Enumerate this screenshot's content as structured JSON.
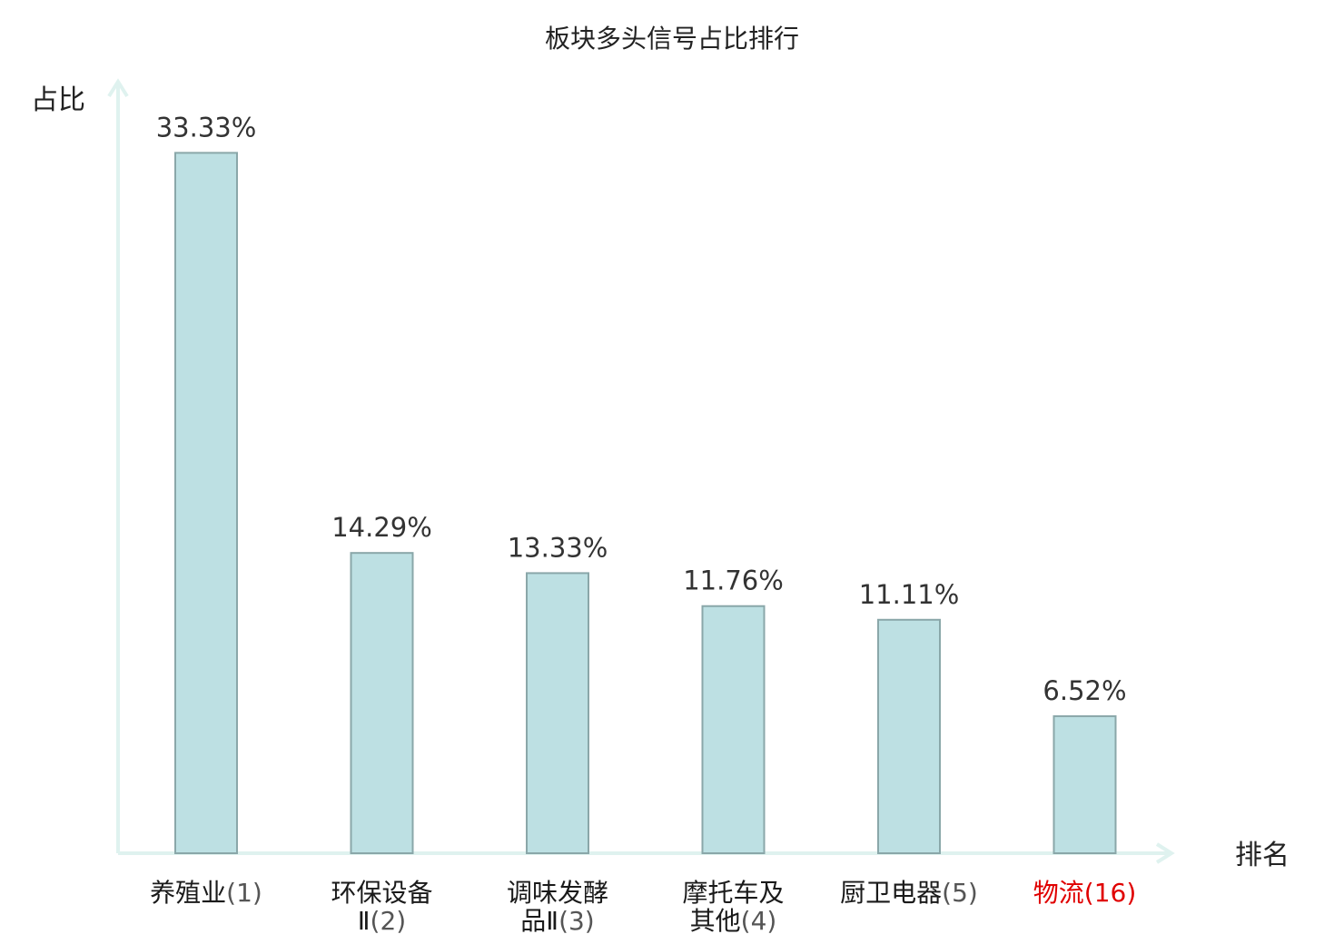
{
  "chart_data": {
    "type": "bar",
    "title": "板块多头信号占比排行",
    "xlabel": "排名",
    "ylabel": "占比",
    "value_unit": "%",
    "ylim": [
      0,
      36.5
    ],
    "grid": false,
    "categories": [
      {
        "name_lines": [
          "养殖业"
        ],
        "rank": "(1)",
        "highlight": false
      },
      {
        "name_lines": [
          "环保设备",
          "Ⅱ"
        ],
        "rank": "(2)",
        "highlight": false
      },
      {
        "name_lines": [
          "调味发酵",
          "品Ⅱ"
        ],
        "rank": "(3)",
        "highlight": false
      },
      {
        "name_lines": [
          "摩托车及",
          "其他"
        ],
        "rank": "(4)",
        "highlight": false
      },
      {
        "name_lines": [
          "厨卫电器"
        ],
        "rank": "(5)",
        "highlight": false
      },
      {
        "name_lines": [
          "物流"
        ],
        "rank": "(16)",
        "highlight": true
      }
    ],
    "values": [
      33.33,
      14.29,
      13.33,
      11.76,
      11.11,
      6.52
    ],
    "value_labels": [
      "33.33%",
      "14.29%",
      "13.33%",
      "11.76%",
      "11.11%",
      "6.52%"
    ],
    "colors": {
      "bar_fill": "#bde0e3",
      "bar_stroke": "#8aa7a9",
      "axis": "#dff2ef",
      "highlight_text": "#e00000"
    }
  }
}
